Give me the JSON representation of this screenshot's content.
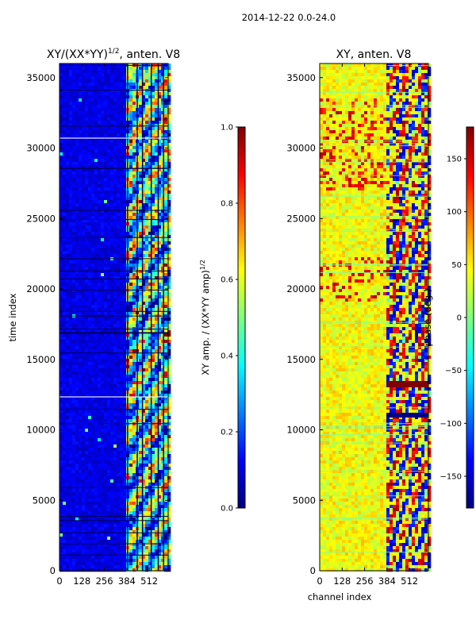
{
  "suptitle": "2014-12-22 0.0-24.0",
  "colors": {
    "jet": [
      "#00007f",
      "#0000ff",
      "#007fff",
      "#00ffff",
      "#7fff7f",
      "#ffff00",
      "#ff7f00",
      "#ff0000",
      "#7f0000"
    ]
  },
  "chart_data": [
    {
      "type": "heatmap",
      "title": "XY/(XX*YY)^1/2, anten. V8",
      "title_main": "XY/(XX*YY)",
      "title_sup": "1/2",
      "title_tail": ", anten. V8",
      "xlabel": "",
      "ylabel": "time index",
      "xlim": [
        0,
        620
      ],
      "ylim": [
        0,
        36000
      ],
      "xticks": [
        0,
        128,
        256,
        384,
        512
      ],
      "yticks": [
        0,
        5000,
        10000,
        15000,
        20000,
        25000,
        30000,
        35000
      ],
      "colorbar": {
        "label": "XY amp. / (XX*YY amp)^1/2",
        "label_main": "XY amp. / (XX*YY amp)",
        "label_sup": "1/2",
        "range": [
          0.0,
          1.0
        ],
        "ticks": [
          "0.0",
          "0.2",
          "0.4",
          "0.6",
          "0.8",
          "1.0"
        ],
        "tick_values": [
          0.0,
          0.2,
          0.4,
          0.6,
          0.8,
          1.0
        ]
      }
    },
    {
      "type": "heatmap",
      "title": "XY, anten. V8",
      "xlabel": "channel index",
      "ylabel": "",
      "xlim": [
        0,
        620
      ],
      "ylim": [
        0,
        36000
      ],
      "xticks": [
        0,
        128,
        256,
        384,
        512
      ],
      "yticks": [
        0,
        5000,
        10000,
        15000,
        20000,
        25000,
        30000,
        35000
      ],
      "colorbar": {
        "label": "phase (deg.)",
        "range": [
          -180,
          180
        ],
        "ticks": [
          "−150",
          "−100",
          "−50",
          "0",
          "50",
          "100",
          "150"
        ],
        "tick_values": [
          -150,
          -100,
          -50,
          0,
          50,
          100,
          150
        ]
      }
    }
  ]
}
